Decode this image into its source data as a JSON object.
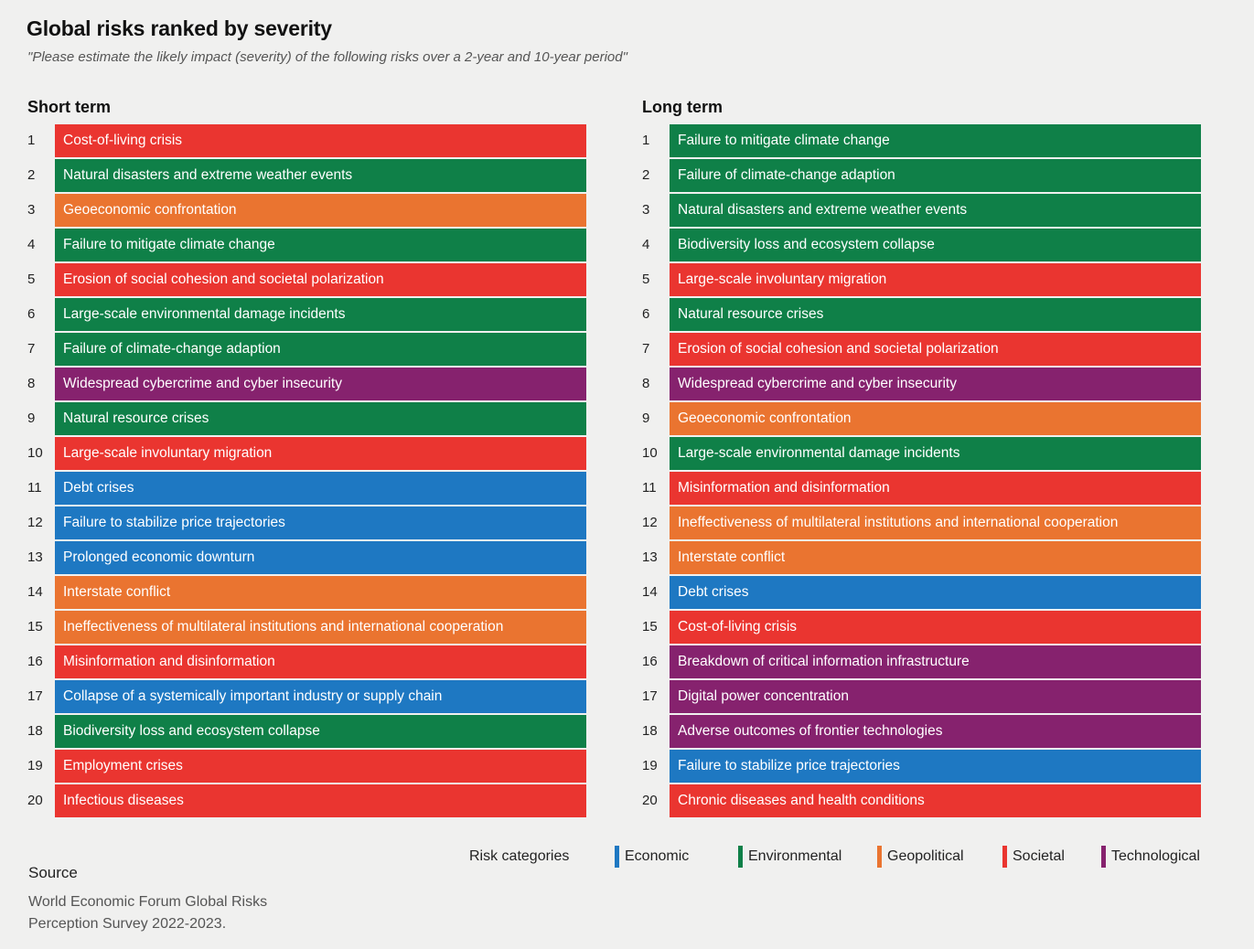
{
  "title": "Global risks ranked by severity",
  "subtitle": "\"Please estimate the likely impact (severity) of the following risks over a 2-year and 10-year period\"",
  "colors": {
    "Economic": "#1e78c2",
    "Environmental": "#0f8048",
    "Geopolitical": "#ea7430",
    "Societal": "#ea3530",
    "Technological": "#86226e"
  },
  "chart_data": {
    "type": "table",
    "title": "Global risks ranked by severity",
    "short_term": {
      "heading": "Short term",
      "items": [
        {
          "rank": "1",
          "label": "Cost-of-living crisis",
          "category": "Societal"
        },
        {
          "rank": "2",
          "label": "Natural disasters and extreme weather events",
          "category": "Environmental"
        },
        {
          "rank": "3",
          "label": "Geoeconomic confrontation",
          "category": "Geopolitical"
        },
        {
          "rank": "4",
          "label": "Failure to mitigate climate change",
          "category": "Environmental"
        },
        {
          "rank": "5",
          "label": "Erosion of social cohesion and societal polarization",
          "category": "Societal"
        },
        {
          "rank": "6",
          "label": "Large-scale environmental damage incidents",
          "category": "Environmental"
        },
        {
          "rank": "7",
          "label": "Failure of climate-change adaption",
          "category": "Environmental"
        },
        {
          "rank": "8",
          "label": "Widespread cybercrime and cyber insecurity",
          "category": "Technological"
        },
        {
          "rank": "9",
          "label": "Natural resource crises",
          "category": "Environmental"
        },
        {
          "rank": "10",
          "label": "Large-scale involuntary migration",
          "category": "Societal"
        },
        {
          "rank": "11",
          "label": "Debt crises",
          "category": "Economic"
        },
        {
          "rank": "12",
          "label": "Failure to stabilize price trajectories",
          "category": "Economic"
        },
        {
          "rank": "13",
          "label": "Prolonged economic downturn",
          "category": "Economic"
        },
        {
          "rank": "14",
          "label": "Interstate conflict",
          "category": "Geopolitical"
        },
        {
          "rank": "15",
          "label": "Ineffectiveness of multilateral institutions and international cooperation",
          "category": "Geopolitical"
        },
        {
          "rank": "16",
          "label": "Misinformation and disinformation",
          "category": "Societal"
        },
        {
          "rank": "17",
          "label": "Collapse of a systemically important industry or supply chain",
          "category": "Economic"
        },
        {
          "rank": "18",
          "label": "Biodiversity loss and ecosystem collapse",
          "category": "Environmental"
        },
        {
          "rank": "19",
          "label": "Employment crises",
          "category": "Societal"
        },
        {
          "rank": "20",
          "label": "Infectious diseases",
          "category": "Societal"
        }
      ]
    },
    "long_term": {
      "heading": "Long term",
      "items": [
        {
          "rank": "1",
          "label": "Failure to mitigate climate change",
          "category": "Environmental"
        },
        {
          "rank": "2",
          "label": "Failure of climate-change adaption",
          "category": "Environmental"
        },
        {
          "rank": "3",
          "label": "Natural disasters and extreme weather events",
          "category": "Environmental"
        },
        {
          "rank": "4",
          "label": "Biodiversity loss and ecosystem collapse",
          "category": "Environmental"
        },
        {
          "rank": "5",
          "label": "Large-scale involuntary migration",
          "category": "Societal"
        },
        {
          "rank": "6",
          "label": "Natural resource crises",
          "category": "Environmental"
        },
        {
          "rank": "7",
          "label": "Erosion of social cohesion and societal polarization",
          "category": "Societal"
        },
        {
          "rank": "8",
          "label": "Widespread cybercrime and cyber insecurity",
          "category": "Technological"
        },
        {
          "rank": "9",
          "label": "Geoeconomic confrontation",
          "category": "Geopolitical"
        },
        {
          "rank": "10",
          "label": "Large-scale environmental damage incidents",
          "category": "Environmental"
        },
        {
          "rank": "11",
          "label": "Misinformation and disinformation",
          "category": "Societal"
        },
        {
          "rank": "12",
          "label": "Ineffectiveness of multilateral institutions and international cooperation",
          "category": "Geopolitical"
        },
        {
          "rank": "13",
          "label": "Interstate conflict",
          "category": "Geopolitical"
        },
        {
          "rank": "14",
          "label": "Debt crises",
          "category": "Economic"
        },
        {
          "rank": "15",
          "label": "Cost-of-living crisis",
          "category": "Societal"
        },
        {
          "rank": "16",
          "label": "Breakdown of critical information infrastructure",
          "category": "Technological"
        },
        {
          "rank": "17",
          "label": "Digital power concentration",
          "category": "Technological"
        },
        {
          "rank": "18",
          "label": "Adverse outcomes of frontier technologies",
          "category": "Technological"
        },
        {
          "rank": "19",
          "label": "Failure to stabilize price trajectories",
          "category": "Economic"
        },
        {
          "rank": "20",
          "label": "Chronic diseases and health conditions",
          "category": "Societal"
        }
      ]
    }
  },
  "legend": {
    "title": "Risk categories",
    "items": [
      {
        "label": "Economic",
        "category": "Economic"
      },
      {
        "label": "Environmental",
        "category": "Environmental"
      },
      {
        "label": "Geopolitical",
        "category": "Geopolitical"
      },
      {
        "label": "Societal",
        "category": "Societal"
      },
      {
        "label": "Technological",
        "category": "Technological"
      }
    ]
  },
  "source": {
    "title": "Source",
    "text": "World Economic Forum Global Risks Perception Survey 2022-2023."
  }
}
